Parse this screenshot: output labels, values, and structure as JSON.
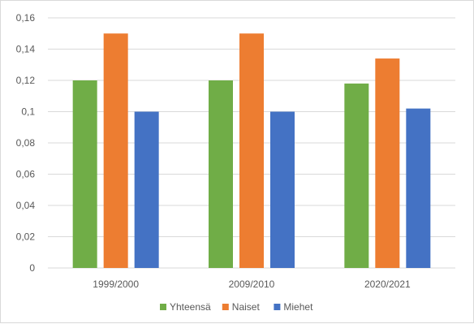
{
  "chart_data": {
    "type": "bar",
    "categories": [
      "1999/2000",
      "2009/2010",
      "2020/2021"
    ],
    "series": [
      {
        "name": "Yhteensä",
        "color": "#70ad47",
        "values": [
          0.12,
          0.12,
          0.118
        ]
      },
      {
        "name": "Naiset",
        "color": "#ed7d31",
        "values": [
          0.15,
          0.15,
          0.134
        ]
      },
      {
        "name": "Miehet",
        "color": "#4472c4",
        "values": [
          0.1,
          0.1,
          0.102
        ]
      }
    ],
    "y_ticks": [
      "0",
      "0,02",
      "0,04",
      "0,06",
      "0,08",
      "0,1",
      "0,12",
      "0,14",
      "0,16"
    ],
    "ylim": [
      0,
      0.16
    ],
    "grid": true,
    "legend_position": "bottom",
    "colors": {
      "grid": "#d9d9d9",
      "axis_text": "#595959"
    }
  }
}
